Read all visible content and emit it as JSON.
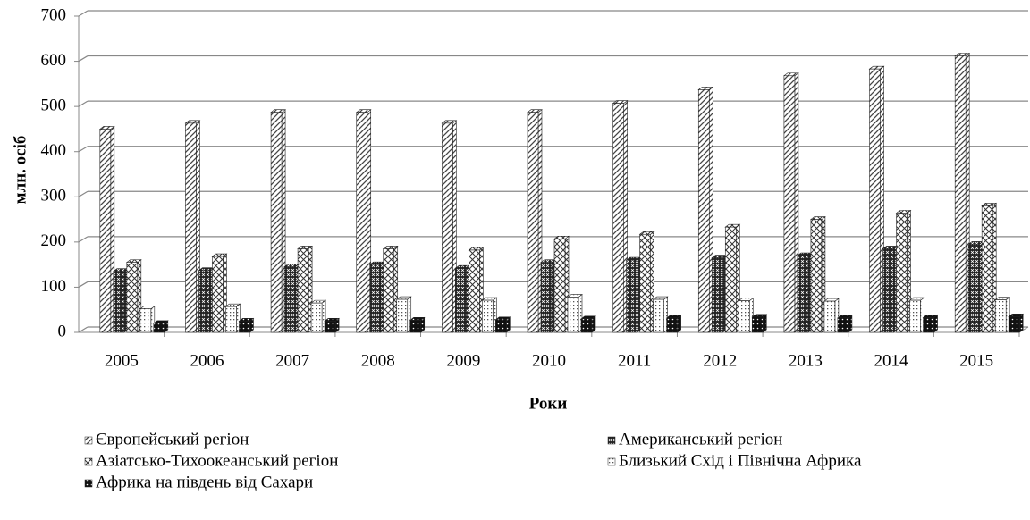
{
  "chart_data": {
    "type": "bar3d",
    "x_label": "Роки",
    "y_label": "млн. осіб",
    "categories": [
      "2005",
      "2006",
      "2007",
      "2008",
      "2009",
      "2010",
      "2011",
      "2012",
      "2013",
      "2014",
      "2015"
    ],
    "series": [
      {
        "name": "Європейський регіон",
        "color": "#444444",
        "values": [
          450,
          463,
          487,
          487,
          463,
          487,
          507,
          537,
          568,
          583,
          612
        ]
      },
      {
        "name": "Американський регіон",
        "color": "#222222",
        "values": [
          135,
          137,
          145,
          150,
          142,
          155,
          160,
          165,
          170,
          185,
          195
        ]
      },
      {
        "name": "Азіатсько-Тихоокеанський регіон",
        "color": "#333333",
        "values": [
          155,
          168,
          185,
          185,
          182,
          207,
          217,
          233,
          250,
          264,
          280
        ]
      },
      {
        "name": "Близький Схід і Північна Африка",
        "color": "#555555",
        "values": [
          52,
          57,
          65,
          73,
          71,
          78,
          73,
          70,
          69,
          71,
          72
        ]
      },
      {
        "name": "Африка на південь від Сахари",
        "color": "#111111",
        "values": [
          20,
          25,
          25,
          27,
          28,
          30,
          32,
          34,
          32,
          33,
          35
        ]
      }
    ],
    "ylim": [
      0,
      700
    ],
    "yticks": [
      0,
      100,
      200,
      300,
      400,
      500,
      600,
      700
    ],
    "grid": true
  }
}
